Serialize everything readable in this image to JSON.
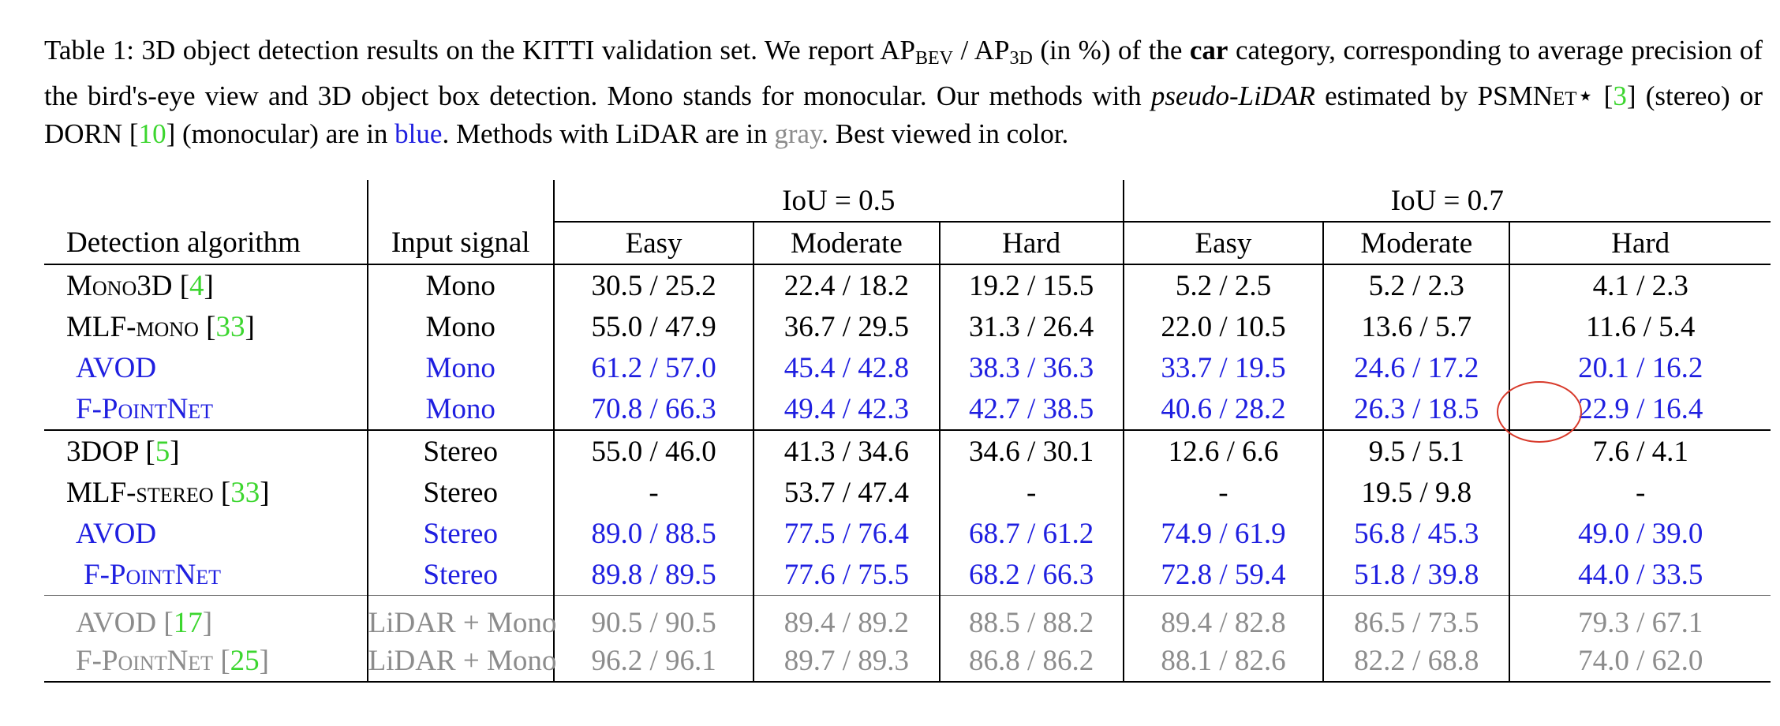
{
  "caption": {
    "label": "Table 1:",
    "t1": "3D object detection results on the KITTI validation set.  We report AP",
    "sub1": "BEV",
    "t2": " / AP",
    "sub2": "3D",
    "t3": " (in %) of the ",
    "bold_car": "car",
    "t4": " category, corresponding to average precision of the bird's-eye view and 3D object box detection. Mono stands for monocular. Our methods with ",
    "italic_pl": "pseudo-LiDAR",
    "t5": " estimated by ",
    "psmnet": "PSMNet⋆",
    "t6": " [",
    "ref3": "3",
    "t7": "] (stereo) or DORN [",
    "ref10": "10",
    "t8": "] (monocular) are in ",
    "blue_word": "blue",
    "t9": ". Methods with LiDAR are in ",
    "gray_word": "gray",
    "t10": ". Best viewed in color."
  },
  "colors": {
    "blue": "#1f1fe0",
    "green": "#3cd62f",
    "gray": "#8c8c8c",
    "circle": "#d83a2b"
  },
  "table": {
    "header": {
      "iou_05": "IoU = 0.5",
      "iou_07": "IoU = 0.7",
      "col_algo": "Detection algorithm",
      "col_input": "Input signal",
      "difficulties": [
        "Easy",
        "Moderate",
        "Hard",
        "Easy",
        "Moderate",
        "Hard"
      ]
    },
    "rows": [
      {
        "name": "Mono3D",
        "ref": "4",
        "input": "Mono",
        "style": "black",
        "cells": [
          "30.5 / 25.2",
          "22.4 / 18.2",
          "19.2 / 15.5",
          "5.2 / 2.5",
          "5.2 / 2.3",
          "4.1 / 2.3"
        ]
      },
      {
        "name": "MLF-mono",
        "ref": "33",
        "input": "Mono",
        "style": "black",
        "cells": [
          "55.0 / 47.9",
          "36.7 / 29.5",
          "31.3 / 26.4",
          "22.0 / 10.5",
          "13.6 / 5.7",
          "11.6 / 5.4"
        ]
      },
      {
        "name": "AVOD",
        "ref": "",
        "input": "Mono",
        "style": "blue",
        "cells": [
          "61.2 / 57.0",
          "45.4 / 42.8",
          "38.3 / 36.3",
          "33.7 / 19.5",
          "24.6 / 17.2",
          "20.1 / 16.2"
        ]
      },
      {
        "name": "F-PointNet",
        "ref": "",
        "input": "Mono",
        "style": "blue",
        "cells": [
          "70.8 / 66.3",
          "49.4 / 42.3",
          "42.7 / 38.5",
          "40.6 / 28.2",
          "26.3 / 18.5",
          "22.9 / 16.4"
        ]
      },
      {
        "name": "3DOP",
        "ref": "5",
        "input": "Stereo",
        "style": "black",
        "cells": [
          "55.0 / 46.0",
          "41.3 / 34.6",
          "34.6 / 30.1",
          "12.6 / 6.6",
          "9.5 / 5.1",
          "7.6 / 4.1"
        ]
      },
      {
        "name": "MLF-stereo",
        "ref": "33",
        "input": "Stereo",
        "style": "black",
        "cells": [
          "-",
          "53.7 / 47.4",
          "-",
          "-",
          "19.5 / 9.8",
          "-"
        ]
      },
      {
        "name": "AVOD",
        "ref": "",
        "input": "Stereo",
        "style": "blue",
        "cells": [
          "89.0 / 88.5",
          "77.5 / 76.4",
          "68.7 / 61.2",
          "74.9 / 61.9",
          "56.8 / 45.3",
          "49.0 / 39.0"
        ]
      },
      {
        "name": "F-PointNet",
        "ref": "",
        "input": "Stereo",
        "style": "blue",
        "cells": [
          "89.8 / 89.5",
          "77.6 / 75.5",
          "68.2 / 66.3",
          "72.8 / 59.4",
          "51.8 / 39.8",
          "44.0 / 33.5"
        ]
      },
      {
        "name": "AVOD",
        "ref": "17",
        "input": "LiDAR + Mono",
        "style": "gray",
        "cells": [
          "90.5 / 90.5",
          "89.4 / 89.2",
          "88.5 / 88.2",
          "89.4 / 82.8",
          "86.5 / 73.5",
          "79.3 / 67.1"
        ]
      },
      {
        "name": "F-PointNet",
        "ref": "25",
        "input": "LiDAR + Mono",
        "style": "gray",
        "cells": [
          "96.2 / 96.1",
          "89.7 / 89.3",
          "86.8 / 86.2",
          "88.1 / 82.6",
          "82.2 / 68.8",
          "74.0 / 62.0"
        ]
      }
    ]
  }
}
